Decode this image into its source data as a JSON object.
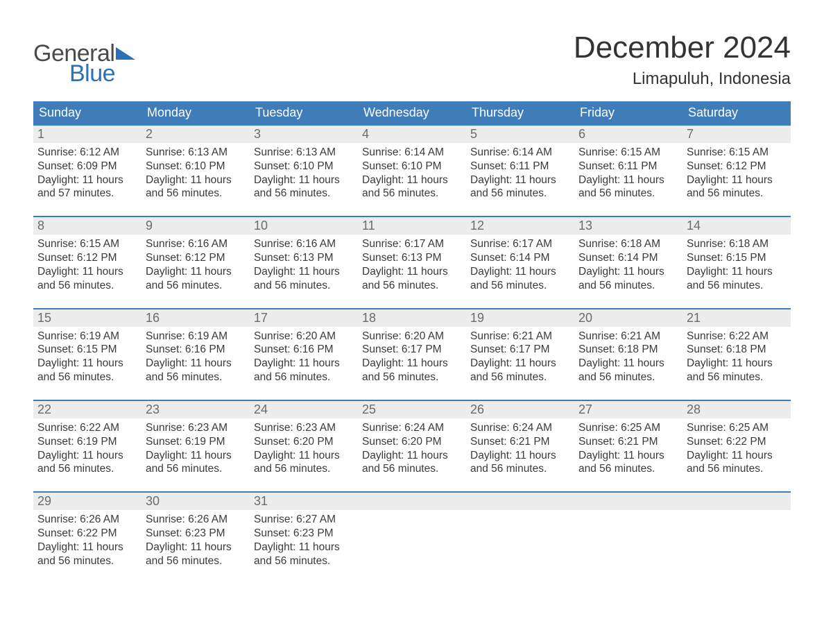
{
  "brand": {
    "word1": "General",
    "word2": "Blue",
    "flag_color": "#2a71b8"
  },
  "title": "December 2024",
  "location": "Limapuluh, Indonesia",
  "colors": {
    "header_bg": "#3f7cba",
    "header_text": "#ffffff",
    "daynum_bg": "#ececec",
    "daynum_text": "#6b6b6b",
    "body_text": "#3a3a3a",
    "week_border": "#3f7cba",
    "page_bg": "#ffffff"
  },
  "fonts": {
    "title_size_pt": 33,
    "location_size_pt": 18,
    "weekday_size_pt": 14,
    "body_size_pt": 12
  },
  "weekdays": [
    "Sunday",
    "Monday",
    "Tuesday",
    "Wednesday",
    "Thursday",
    "Friday",
    "Saturday"
  ],
  "labels": {
    "sunrise": "Sunrise:",
    "sunset": "Sunset:",
    "daylight": "Daylight:"
  },
  "days": [
    {
      "n": 1,
      "sunrise": "6:12 AM",
      "sunset": "6:09 PM",
      "daylight": "11 hours and 57 minutes."
    },
    {
      "n": 2,
      "sunrise": "6:13 AM",
      "sunset": "6:10 PM",
      "daylight": "11 hours and 56 minutes."
    },
    {
      "n": 3,
      "sunrise": "6:13 AM",
      "sunset": "6:10 PM",
      "daylight": "11 hours and 56 minutes."
    },
    {
      "n": 4,
      "sunrise": "6:14 AM",
      "sunset": "6:10 PM",
      "daylight": "11 hours and 56 minutes."
    },
    {
      "n": 5,
      "sunrise": "6:14 AM",
      "sunset": "6:11 PM",
      "daylight": "11 hours and 56 minutes."
    },
    {
      "n": 6,
      "sunrise": "6:15 AM",
      "sunset": "6:11 PM",
      "daylight": "11 hours and 56 minutes."
    },
    {
      "n": 7,
      "sunrise": "6:15 AM",
      "sunset": "6:12 PM",
      "daylight": "11 hours and 56 minutes."
    },
    {
      "n": 8,
      "sunrise": "6:15 AM",
      "sunset": "6:12 PM",
      "daylight": "11 hours and 56 minutes."
    },
    {
      "n": 9,
      "sunrise": "6:16 AM",
      "sunset": "6:12 PM",
      "daylight": "11 hours and 56 minutes."
    },
    {
      "n": 10,
      "sunrise": "6:16 AM",
      "sunset": "6:13 PM",
      "daylight": "11 hours and 56 minutes."
    },
    {
      "n": 11,
      "sunrise": "6:17 AM",
      "sunset": "6:13 PM",
      "daylight": "11 hours and 56 minutes."
    },
    {
      "n": 12,
      "sunrise": "6:17 AM",
      "sunset": "6:14 PM",
      "daylight": "11 hours and 56 minutes."
    },
    {
      "n": 13,
      "sunrise": "6:18 AM",
      "sunset": "6:14 PM",
      "daylight": "11 hours and 56 minutes."
    },
    {
      "n": 14,
      "sunrise": "6:18 AM",
      "sunset": "6:15 PM",
      "daylight": "11 hours and 56 minutes."
    },
    {
      "n": 15,
      "sunrise": "6:19 AM",
      "sunset": "6:15 PM",
      "daylight": "11 hours and 56 minutes."
    },
    {
      "n": 16,
      "sunrise": "6:19 AM",
      "sunset": "6:16 PM",
      "daylight": "11 hours and 56 minutes."
    },
    {
      "n": 17,
      "sunrise": "6:20 AM",
      "sunset": "6:16 PM",
      "daylight": "11 hours and 56 minutes."
    },
    {
      "n": 18,
      "sunrise": "6:20 AM",
      "sunset": "6:17 PM",
      "daylight": "11 hours and 56 minutes."
    },
    {
      "n": 19,
      "sunrise": "6:21 AM",
      "sunset": "6:17 PM",
      "daylight": "11 hours and 56 minutes."
    },
    {
      "n": 20,
      "sunrise": "6:21 AM",
      "sunset": "6:18 PM",
      "daylight": "11 hours and 56 minutes."
    },
    {
      "n": 21,
      "sunrise": "6:22 AM",
      "sunset": "6:18 PM",
      "daylight": "11 hours and 56 minutes."
    },
    {
      "n": 22,
      "sunrise": "6:22 AM",
      "sunset": "6:19 PM",
      "daylight": "11 hours and 56 minutes."
    },
    {
      "n": 23,
      "sunrise": "6:23 AM",
      "sunset": "6:19 PM",
      "daylight": "11 hours and 56 minutes."
    },
    {
      "n": 24,
      "sunrise": "6:23 AM",
      "sunset": "6:20 PM",
      "daylight": "11 hours and 56 minutes."
    },
    {
      "n": 25,
      "sunrise": "6:24 AM",
      "sunset": "6:20 PM",
      "daylight": "11 hours and 56 minutes."
    },
    {
      "n": 26,
      "sunrise": "6:24 AM",
      "sunset": "6:21 PM",
      "daylight": "11 hours and 56 minutes."
    },
    {
      "n": 27,
      "sunrise": "6:25 AM",
      "sunset": "6:21 PM",
      "daylight": "11 hours and 56 minutes."
    },
    {
      "n": 28,
      "sunrise": "6:25 AM",
      "sunset": "6:22 PM",
      "daylight": "11 hours and 56 minutes."
    },
    {
      "n": 29,
      "sunrise": "6:26 AM",
      "sunset": "6:22 PM",
      "daylight": "11 hours and 56 minutes."
    },
    {
      "n": 30,
      "sunrise": "6:26 AM",
      "sunset": "6:23 PM",
      "daylight": "11 hours and 56 minutes."
    },
    {
      "n": 31,
      "sunrise": "6:27 AM",
      "sunset": "6:23 PM",
      "daylight": "11 hours and 56 minutes."
    }
  ],
  "layout": {
    "cols": 7,
    "start_weekday": 0,
    "trailing_empty": 4
  }
}
